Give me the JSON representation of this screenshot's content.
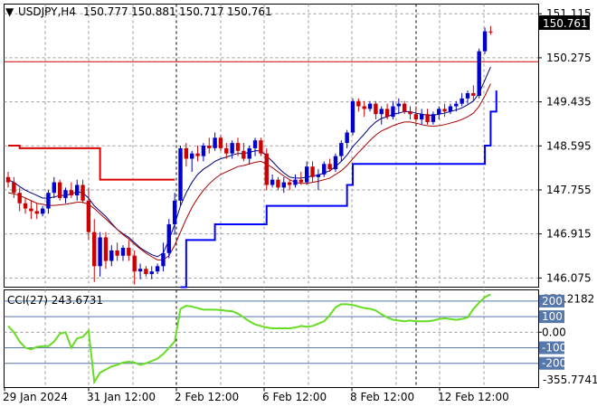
{
  "symbol_header": {
    "arrow": "▼",
    "symbol": "USDJPY,H4",
    "open": "150.777",
    "high": "150.881",
    "low": "150.717",
    "close": "150.761"
  },
  "current_price_label": "150.761",
  "price_axis_labels": [
    "151.115",
    "150.275",
    "149.435",
    "148.595",
    "147.755",
    "146.915",
    "146.075"
  ],
  "time_axis_labels": [
    "29 Jan 2024",
    "31 Jan 12:00",
    "2 Feb 12:00",
    "6 Feb 12:00",
    "8 Feb 12:00",
    "12 Feb 12:00"
  ],
  "cci_panel": {
    "label": "CCI(27) 243.6731",
    "max_label": "272.2182",
    "min_label": "-355.7741",
    "level_labels": [
      "200",
      "100",
      "0.00",
      "-100",
      "-200"
    ]
  },
  "colors": {
    "bull_candle": "#0000cc",
    "bear_candle": "#cc0000",
    "support_line": "#0000ff",
    "resistance_line": "#dd0000",
    "ma_fast": "#000080",
    "ma_slow": "#aa0000",
    "horizontal_level": "#cc0000",
    "cci_line": "#66dd22",
    "level_band": "#5577aa"
  },
  "chart_data": [
    {
      "type": "candlestick",
      "title": "USDJPY,H4",
      "ylim": [
        145.9,
        151.3
      ],
      "yticks": [
        151.115,
        150.275,
        149.435,
        148.595,
        147.755,
        146.915,
        146.075
      ],
      "horizontal_level": 150.2,
      "candles": [
        [
          148.0,
          148.1,
          147.8,
          147.9
        ],
        [
          147.9,
          148.0,
          147.6,
          147.7
        ],
        [
          147.7,
          147.8,
          147.35,
          147.5
        ],
        [
          147.5,
          147.6,
          147.3,
          147.4
        ],
        [
          147.4,
          147.55,
          147.2,
          147.35
        ],
        [
          147.35,
          147.5,
          147.2,
          147.3
        ],
        [
          147.3,
          147.45,
          147.25,
          147.4
        ],
        [
          147.4,
          147.75,
          147.3,
          147.7
        ],
        [
          147.7,
          148.0,
          147.6,
          147.9
        ],
        [
          147.9,
          147.95,
          147.55,
          147.6
        ],
        [
          147.6,
          147.8,
          147.5,
          147.75
        ],
        [
          147.75,
          147.9,
          147.6,
          147.65
        ],
        [
          147.65,
          147.95,
          147.55,
          147.85
        ],
        [
          147.85,
          147.95,
          147.5,
          147.55
        ],
        [
          147.55,
          147.8,
          146.8,
          146.95
        ],
        [
          146.95,
          147.2,
          146.0,
          146.3
        ],
        [
          146.3,
          146.95,
          146.1,
          146.85
        ],
        [
          146.85,
          146.95,
          146.25,
          146.4
        ],
        [
          146.4,
          146.7,
          146.3,
          146.6
        ],
        [
          146.6,
          146.75,
          146.4,
          146.5
        ],
        [
          146.5,
          146.7,
          146.4,
          146.65
        ],
        [
          146.65,
          146.8,
          146.4,
          146.5
        ],
        [
          146.5,
          146.6,
          145.95,
          146.2
        ],
        [
          146.2,
          146.35,
          146.05,
          146.25
        ],
        [
          146.25,
          146.3,
          146.1,
          146.15
        ],
        [
          146.15,
          146.3,
          146.05,
          146.2
        ],
        [
          146.2,
          146.35,
          146.15,
          146.3
        ],
        [
          146.3,
          146.75,
          146.2,
          146.55
        ],
        [
          146.55,
          147.2,
          146.45,
          147.1
        ],
        [
          147.1,
          147.7,
          146.9,
          147.55
        ],
        [
          147.55,
          148.6,
          147.45,
          148.55
        ],
        [
          148.55,
          148.65,
          148.2,
          148.35
        ],
        [
          148.35,
          148.5,
          148.1,
          148.45
        ],
        [
          148.45,
          148.6,
          148.3,
          148.4
        ],
        [
          148.4,
          148.65,
          148.3,
          148.6
        ],
        [
          148.6,
          148.75,
          148.45,
          148.55
        ],
        [
          148.55,
          148.85,
          148.5,
          148.75
        ],
        [
          148.75,
          148.8,
          148.5,
          148.55
        ],
        [
          148.55,
          148.65,
          148.35,
          148.45
        ],
        [
          148.45,
          148.7,
          148.35,
          148.65
        ],
        [
          148.65,
          148.75,
          148.4,
          148.5
        ],
        [
          148.5,
          148.65,
          148.3,
          148.35
        ],
        [
          148.35,
          148.6,
          148.25,
          148.55
        ],
        [
          148.55,
          148.75,
          148.4,
          148.7
        ],
        [
          148.7,
          148.75,
          148.4,
          148.45
        ],
        [
          148.45,
          148.55,
          147.75,
          147.85
        ],
        [
          147.85,
          148.05,
          147.8,
          147.95
        ],
        [
          147.95,
          148.0,
          147.75,
          147.8
        ],
        [
          147.8,
          148.0,
          147.7,
          147.9
        ],
        [
          147.9,
          147.95,
          147.75,
          147.85
        ],
        [
          147.85,
          148.05,
          147.8,
          147.95
        ],
        [
          147.95,
          148.1,
          147.85,
          147.9
        ],
        [
          147.9,
          148.3,
          147.85,
          148.2
        ],
        [
          148.2,
          148.3,
          147.9,
          148.0
        ],
        [
          148.0,
          148.15,
          147.75,
          148.05
        ],
        [
          148.05,
          148.3,
          148.0,
          148.25
        ],
        [
          148.25,
          148.35,
          148.1,
          148.15
        ],
        [
          148.15,
          148.45,
          148.1,
          148.4
        ],
        [
          148.4,
          148.7,
          148.3,
          148.65
        ],
        [
          148.65,
          148.9,
          148.55,
          148.85
        ],
        [
          148.85,
          149.5,
          148.8,
          149.45
        ],
        [
          149.45,
          149.5,
          149.25,
          149.35
        ],
        [
          149.35,
          149.45,
          149.15,
          149.3
        ],
        [
          149.3,
          149.45,
          149.25,
          149.4
        ],
        [
          149.4,
          149.45,
          149.1,
          149.2
        ],
        [
          149.2,
          149.35,
          149.0,
          149.3
        ],
        [
          149.3,
          149.4,
          149.1,
          149.15
        ],
        [
          149.15,
          149.45,
          149.1,
          149.35
        ],
        [
          149.35,
          149.5,
          149.2,
          149.4
        ],
        [
          149.4,
          149.45,
          149.2,
          149.25
        ],
        [
          149.25,
          149.35,
          149.1,
          149.2
        ],
        [
          149.2,
          149.35,
          149.05,
          149.1
        ],
        [
          149.1,
          149.3,
          149.0,
          149.2
        ],
        [
          149.2,
          149.3,
          149.0,
          149.05
        ],
        [
          149.05,
          149.25,
          149.0,
          149.2
        ],
        [
          149.2,
          149.35,
          149.1,
          149.3
        ],
        [
          149.3,
          149.4,
          149.15,
          149.25
        ],
        [
          149.25,
          149.4,
          149.2,
          149.35
        ],
        [
          149.35,
          149.45,
          149.25,
          149.4
        ],
        [
          149.4,
          149.6,
          149.35,
          149.5
        ],
        [
          149.5,
          149.65,
          149.4,
          149.6
        ],
        [
          149.6,
          149.75,
          149.45,
          149.55
        ],
        [
          149.55,
          150.45,
          149.5,
          150.4
        ],
        [
          150.4,
          150.85,
          150.35,
          150.78
        ],
        [
          150.777,
          150.881,
          150.717,
          150.761
        ]
      ],
      "series": [
        {
          "name": "fast average",
          "values": [
            147.95,
            147.9,
            147.82,
            147.75,
            147.7,
            147.65,
            147.6,
            147.6,
            147.62,
            147.65,
            147.65,
            147.68,
            147.72,
            147.7,
            147.6,
            147.45,
            147.35,
            147.25,
            147.12,
            147.0,
            146.92,
            146.85,
            146.75,
            146.65,
            146.58,
            146.52,
            146.48,
            146.55,
            146.8,
            147.1,
            147.45,
            147.7,
            147.9,
            148.05,
            148.15,
            148.22,
            148.3,
            148.35,
            148.38,
            148.42,
            148.45,
            148.45,
            148.47,
            148.5,
            148.5,
            148.4,
            148.3,
            148.18,
            148.08,
            148.0,
            147.98,
            147.98,
            148.0,
            148.02,
            148.04,
            148.08,
            148.12,
            148.2,
            148.3,
            148.42,
            148.58,
            148.7,
            148.82,
            148.95,
            149.05,
            149.12,
            149.15,
            149.2,
            149.22,
            149.25,
            149.25,
            149.22,
            149.2,
            149.18,
            149.18,
            149.2,
            149.22,
            149.25,
            149.28,
            149.32,
            149.38,
            149.45,
            149.6,
            149.85,
            150.1
          ]
        },
        {
          "name": "slow average",
          "values": [
            147.7,
            147.68,
            147.65,
            147.6,
            147.55,
            147.5,
            147.48,
            147.46,
            147.46,
            147.47,
            147.48,
            147.5,
            147.52,
            147.52,
            147.48,
            147.4,
            147.3,
            147.2,
            147.1,
            147.0,
            146.9,
            146.82,
            146.72,
            146.63,
            146.55,
            146.48,
            146.42,
            146.42,
            146.5,
            146.7,
            146.95,
            147.2,
            147.42,
            147.6,
            147.75,
            147.87,
            147.97,
            148.05,
            148.1,
            148.15,
            148.2,
            148.22,
            148.25,
            148.28,
            148.3,
            148.25,
            148.18,
            148.1,
            148.02,
            147.95,
            147.9,
            147.88,
            147.88,
            147.9,
            147.92,
            147.95,
            147.98,
            148.05,
            148.12,
            148.22,
            148.35,
            148.47,
            148.58,
            148.7,
            148.8,
            148.88,
            148.93,
            148.98,
            149.02,
            149.05,
            149.05,
            149.03,
            149.0,
            148.98,
            148.97,
            148.98,
            149.0,
            149.03,
            149.06,
            149.1,
            149.15,
            149.22,
            149.35,
            149.55,
            149.78
          ]
        },
        {
          "name": "lower band",
          "type": "step",
          "points": [
            [
              30,
              145.9
            ],
            [
              31,
              146.8
            ],
            [
              35,
              146.8
            ],
            [
              36,
              147.1
            ],
            [
              44,
              147.1
            ],
            [
              45,
              147.45
            ],
            [
              58,
              147.45
            ],
            [
              59,
              147.85
            ],
            [
              60,
              148.25
            ],
            [
              82,
              148.25
            ],
            [
              83,
              148.6
            ],
            [
              84,
              149.25
            ],
            [
              85,
              149.65
            ]
          ]
        },
        {
          "name": "upper band",
          "type": "step",
          "points": [
            [
              0,
              148.6
            ],
            [
              2,
              148.55
            ],
            [
              15,
              148.55
            ],
            [
              16,
              147.95
            ],
            [
              29,
              147.95
            ]
          ]
        }
      ]
    },
    {
      "type": "line",
      "title": "CCI(27)",
      "ylim": [
        -355.7741,
        272.2182
      ],
      "yticks": [
        200,
        100,
        0,
        -100,
        -200
      ],
      "values": [
        40,
        0,
        -60,
        -100,
        -110,
        -95,
        -90,
        -90,
        -60,
        -10,
        0,
        -100,
        -40,
        -30,
        10,
        -320,
        -260,
        -240,
        -220,
        -210,
        -195,
        -190,
        -195,
        -210,
        -200,
        -185,
        -170,
        -140,
        -100,
        -60,
        150,
        170,
        165,
        155,
        145,
        145,
        145,
        142,
        138,
        135,
        120,
        95,
        70,
        50,
        40,
        30,
        25,
        25,
        25,
        25,
        30,
        40,
        35,
        40,
        55,
        70,
        110,
        160,
        180,
        180,
        175,
        165,
        155,
        150,
        140,
        115,
        95,
        80,
        75,
        70,
        75,
        70,
        70,
        70,
        75,
        85,
        90,
        85,
        80,
        85,
        95,
        150,
        190,
        225,
        243.6731
      ]
    }
  ]
}
